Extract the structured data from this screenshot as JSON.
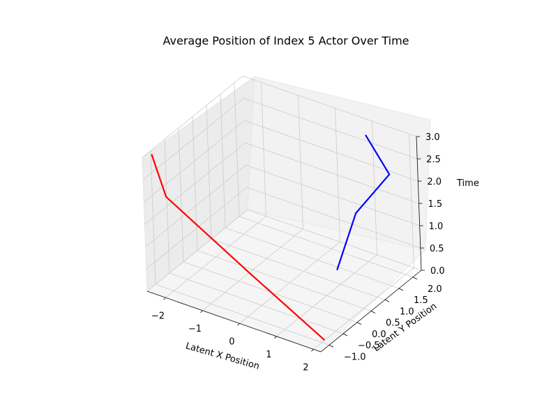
{
  "chart_data": {
    "type": "line3d",
    "title": "Average Position of Index 5 Actor Over Time",
    "xlabel": "Latent X Position",
    "ylabel": "Latent Y Position",
    "zlabel": "Time",
    "xlim": [
      -2.5,
      2.2
    ],
    "ylim": [
      -1.3,
      2.3
    ],
    "zlim": [
      0,
      3
    ],
    "xticks": [
      -2,
      -1,
      0,
      1,
      2
    ],
    "yticks": [
      -1.0,
      -0.5,
      0.0,
      0.5,
      1.0,
      1.5,
      2.0
    ],
    "zticks": [
      0.0,
      0.5,
      1.0,
      1.5,
      2.0,
      2.5,
      3.0
    ],
    "grid": true,
    "series": [
      {
        "color": "#ff0000",
        "points": [
          {
            "x": 2.0,
            "y": -0.9,
            "t": 0
          },
          {
            "x": 0.1,
            "y": -1.0,
            "t": 1
          },
          {
            "x": -2.2,
            "y": -0.9,
            "t": 2
          },
          {
            "x": -2.4,
            "y": -1.1,
            "t": 3
          }
        ]
      },
      {
        "color": "#0000ff",
        "points": [
          {
            "x": 0.6,
            "y": 1.4,
            "t": 0
          },
          {
            "x": 0.7,
            "y": 2.0,
            "t": 1
          },
          {
            "x": 1.5,
            "y": 2.2,
            "t": 2
          },
          {
            "x": 1.2,
            "y": 1.8,
            "t": 3
          }
        ]
      }
    ]
  }
}
